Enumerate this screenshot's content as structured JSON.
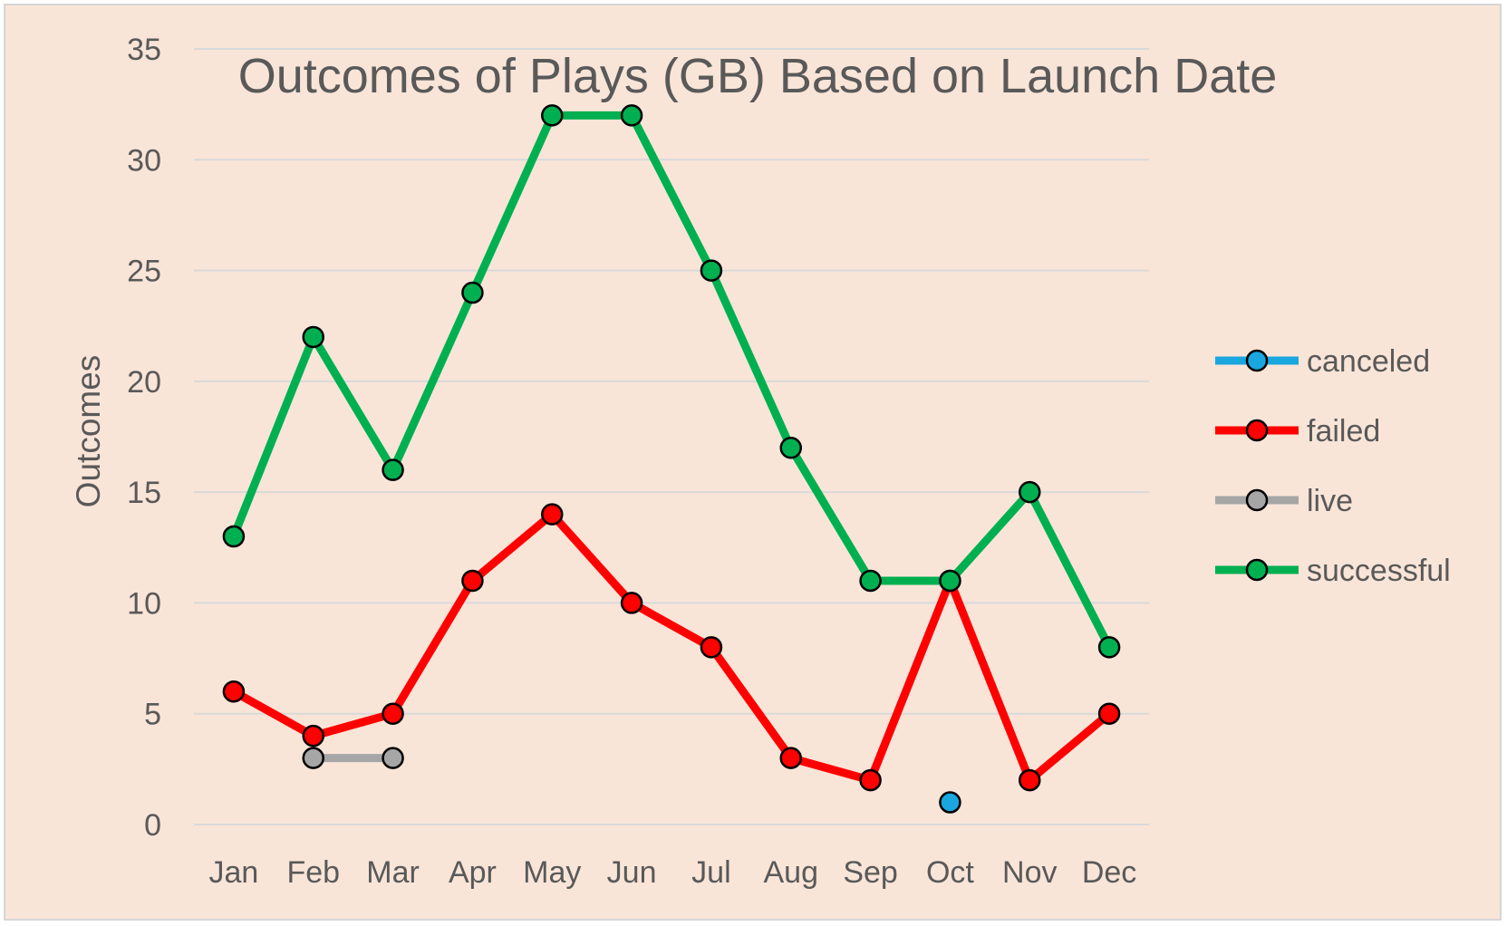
{
  "chart_data": {
    "type": "line",
    "title": "Outcomes of Plays (GB) Based on Launch Date",
    "xlabel": "",
    "ylabel": "Outcomes",
    "categories": [
      "Jan",
      "Feb",
      "Mar",
      "Apr",
      "May",
      "Jun",
      "Jul",
      "Aug",
      "Sep",
      "Oct",
      "Nov",
      "Dec"
    ],
    "yticks": [
      "0",
      "5",
      "10",
      "15",
      "20",
      "25",
      "30",
      "35"
    ],
    "ylim": [
      0,
      35
    ],
    "grid": true,
    "legend_position": "right",
    "series": [
      {
        "name": "canceled",
        "color": "#1aa7e0",
        "values": [
          null,
          null,
          null,
          null,
          null,
          null,
          null,
          null,
          null,
          1,
          null,
          null
        ]
      },
      {
        "name": "failed",
        "color": "#ff0000",
        "values": [
          6,
          4,
          5,
          11,
          14,
          10,
          8,
          3,
          2,
          11,
          2,
          5
        ]
      },
      {
        "name": "live",
        "color": "#a6a6a6",
        "values": [
          null,
          3,
          3,
          null,
          null,
          null,
          null,
          null,
          null,
          null,
          null,
          null
        ]
      },
      {
        "name": "successful",
        "color": "#00b050",
        "values": [
          13,
          22,
          16,
          24,
          32,
          32,
          25,
          17,
          11,
          11,
          15,
          8
        ]
      }
    ]
  }
}
